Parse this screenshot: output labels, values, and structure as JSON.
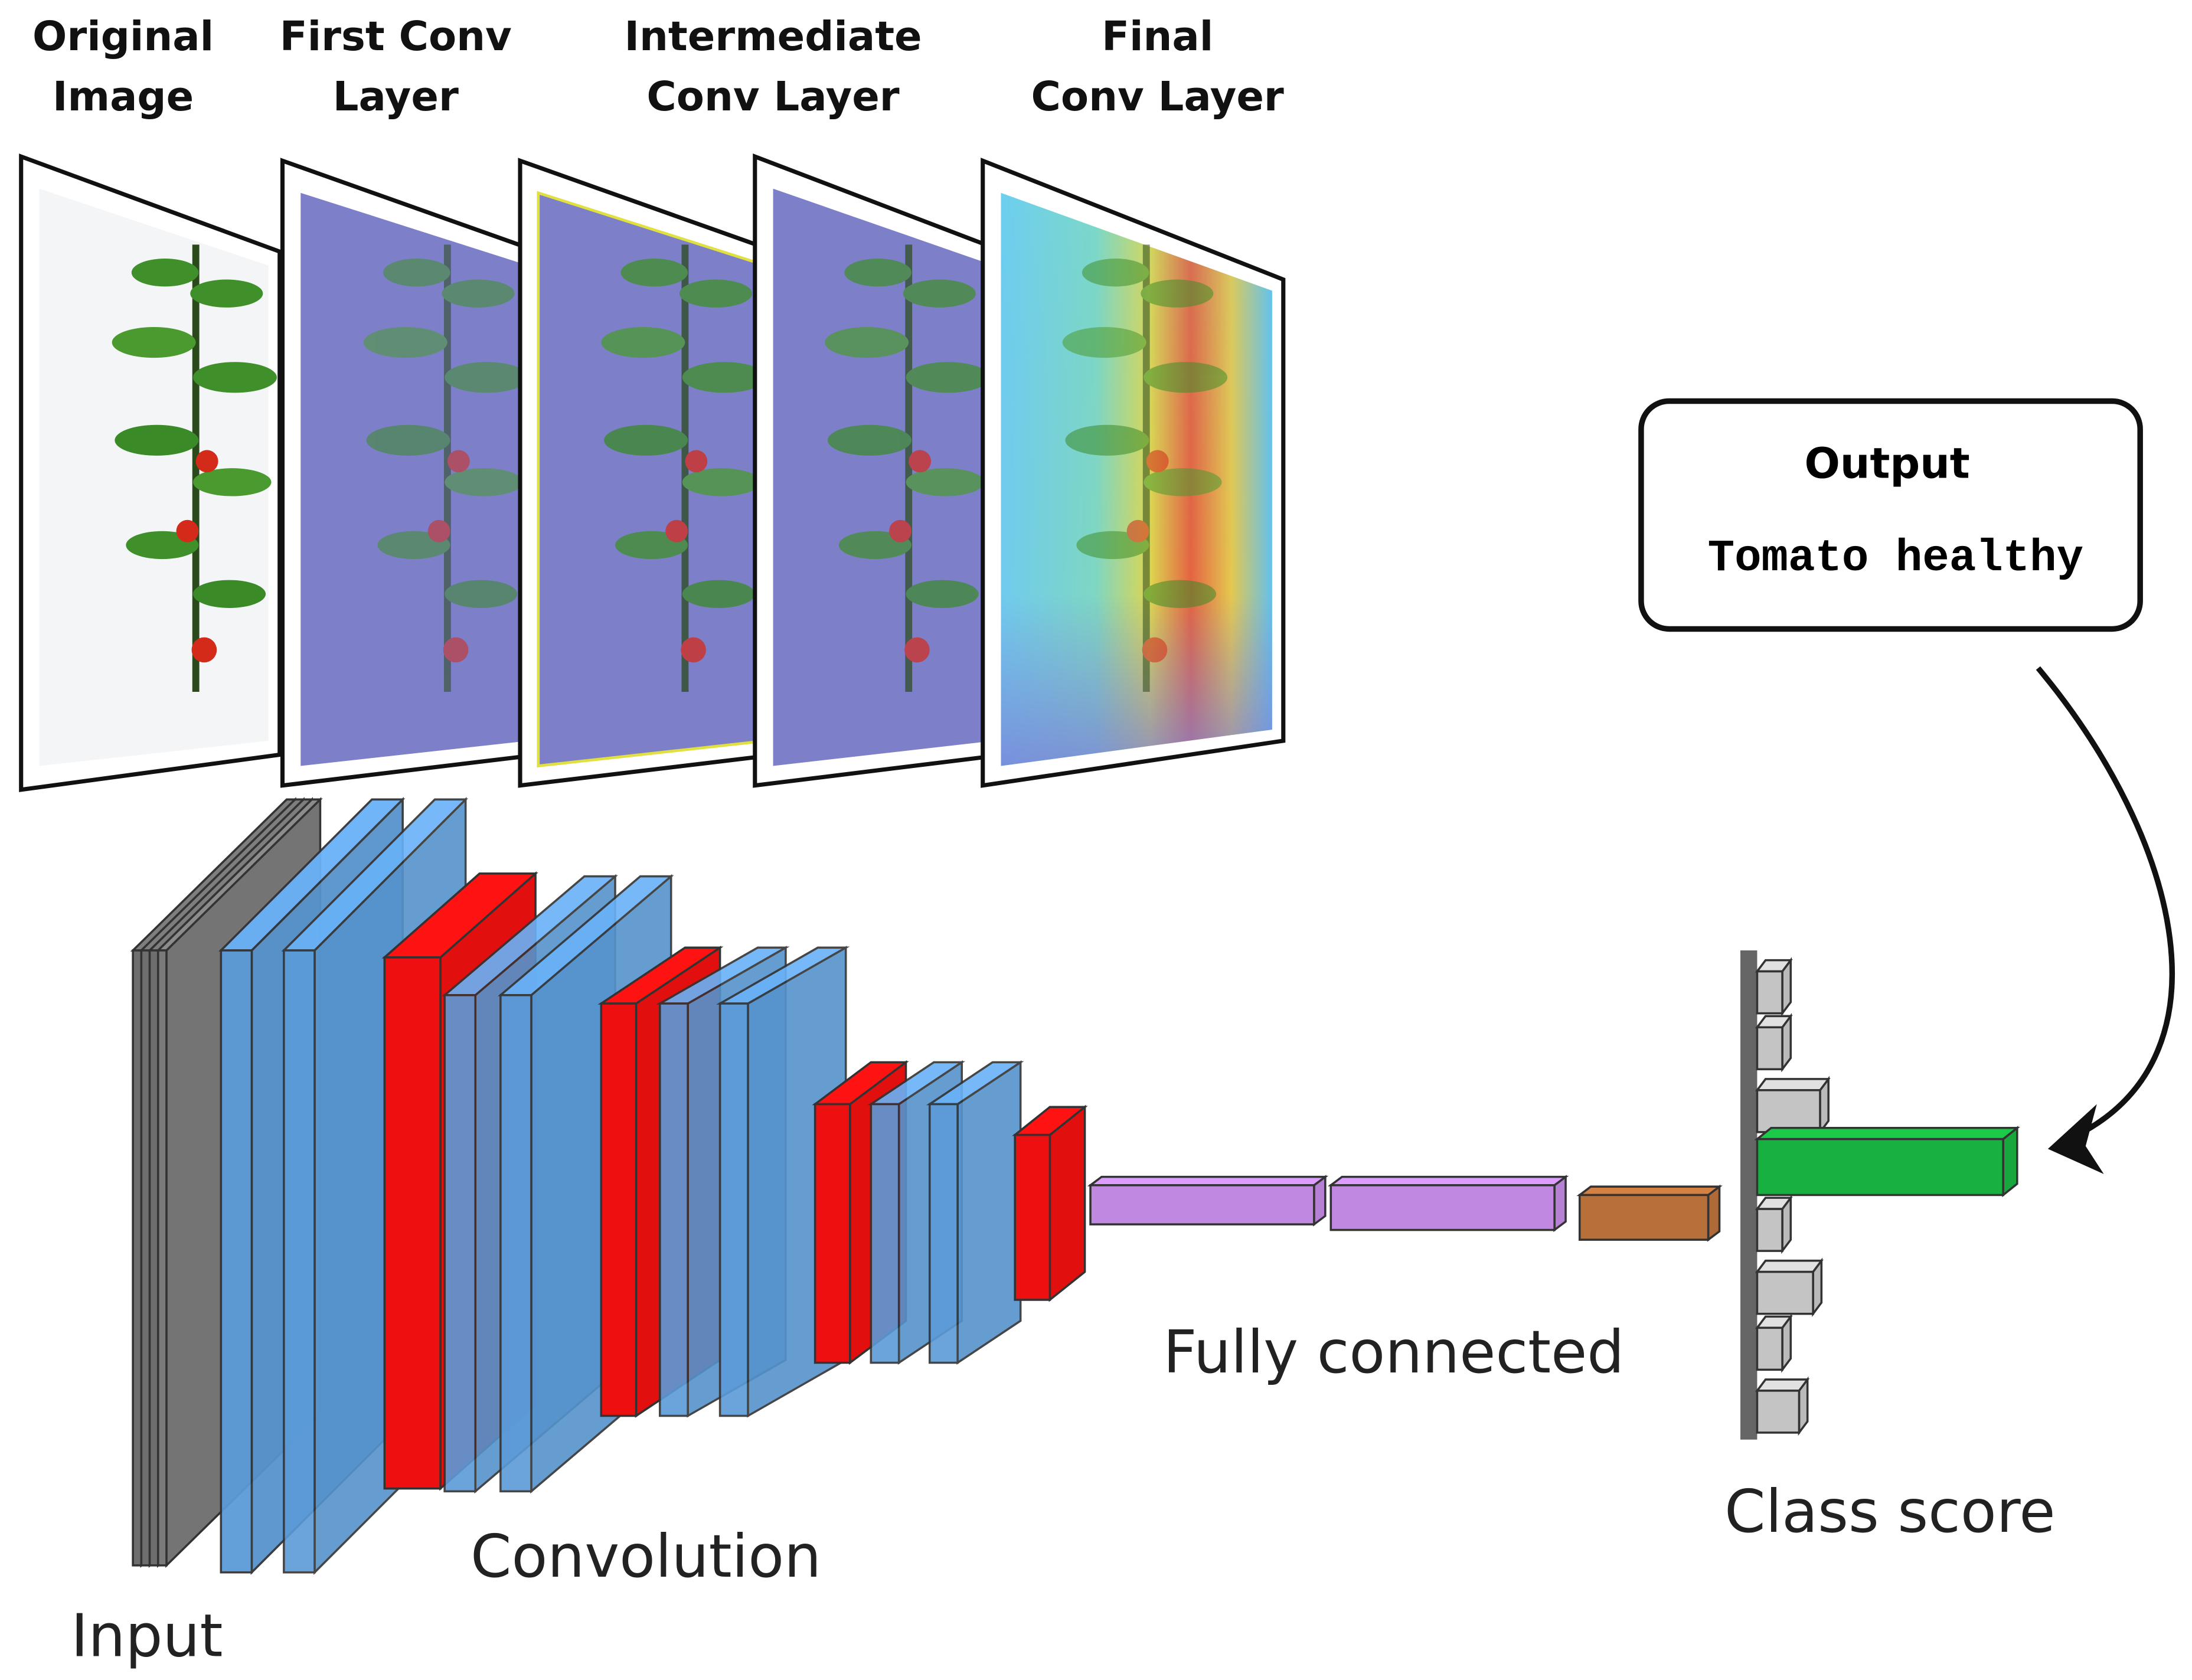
{
  "panels": [
    {
      "label": [
        "Original",
        "Image"
      ]
    },
    {
      "label": [
        "First Conv",
        "Layer"
      ]
    },
    {
      "label": [
        "Intermediate",
        "Conv Layer"
      ]
    },
    {
      "label": [
        "Final",
        "Conv Layer"
      ]
    }
  ],
  "output": {
    "title": "Output",
    "value": "Tomato healthy"
  },
  "labels": {
    "input": "Input",
    "convolution": "Convolution",
    "fully_connected": "Fully connected",
    "class_score": "Class score"
  }
}
